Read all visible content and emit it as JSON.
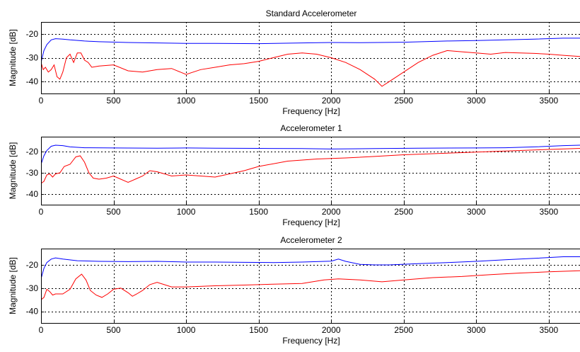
{
  "chart_data": [
    {
      "type": "line",
      "title": "Standard Accelerometer",
      "xlabel": "Frequency [Hz]",
      "ylabel": "Magnitude [dB]",
      "xlim": [
        0,
        3720
      ],
      "ylim": [
        -45,
        -15
      ],
      "xticks": [
        0,
        500,
        1000,
        1500,
        2000,
        2500,
        3000,
        3500
      ],
      "yticks": [
        -20,
        -30,
        -40
      ],
      "xtick_labels": [
        "0",
        "500",
        "1000",
        "1500",
        "2000",
        "2500",
        "3000",
        "3500"
      ],
      "ytick_labels": [
        "-20",
        "-30",
        "-40"
      ],
      "grid": true,
      "series": [
        {
          "color": "#0000ff",
          "x": [
            0,
            20,
            40,
            70,
            100,
            150,
            200,
            300,
            400,
            600,
            800,
            1000,
            1200,
            1500,
            1800,
            2000,
            2200,
            2500,
            2800,
            3000,
            3200,
            3400,
            3600,
            3720
          ],
          "y": [
            -32,
            -27,
            -24.5,
            -22.5,
            -22,
            -22.2,
            -22.5,
            -23,
            -23.3,
            -23.6,
            -23.8,
            -24,
            -24,
            -24.1,
            -23.8,
            -23.6,
            -23.7,
            -23.5,
            -23,
            -22.8,
            -22.5,
            -22.2,
            -21.8,
            -21.8
          ]
        },
        {
          "color": "#ff0000",
          "x": [
            0,
            15,
            30,
            50,
            70,
            90,
            110,
            130,
            150,
            175,
            200,
            225,
            250,
            275,
            300,
            325,
            350,
            400,
            500,
            600,
            700,
            800,
            900,
            1000,
            1100,
            1200,
            1300,
            1400,
            1500,
            1600,
            1700,
            1800,
            1900,
            2000,
            2100,
            2200,
            2300,
            2350,
            2400,
            2500,
            2600,
            2700,
            2800,
            2900,
            3000,
            3100,
            3200,
            3300,
            3400,
            3500,
            3600,
            3720
          ],
          "y": [
            -32,
            -35,
            -34,
            -36,
            -35,
            -33,
            -38,
            -39,
            -36,
            -30,
            -28.5,
            -32,
            -28,
            -28,
            -31,
            -32,
            -34,
            -33.5,
            -33,
            -35.5,
            -36,
            -35,
            -34.5,
            -37,
            -35,
            -34,
            -33,
            -32.5,
            -31.5,
            -30,
            -28.5,
            -28,
            -28.5,
            -30,
            -32,
            -35,
            -39,
            -42,
            -40,
            -36,
            -32,
            -29,
            -27,
            -27.5,
            -28,
            -28.5,
            -27.8,
            -28,
            -28.2,
            -28.5,
            -29,
            -29.5
          ]
        }
      ]
    },
    {
      "type": "line",
      "title": "Accelerometer 1",
      "xlabel": "Frequency [Hz]",
      "ylabel": "Magnitude [dB]",
      "xlim": [
        0,
        3720
      ],
      "ylim": [
        -45,
        -13
      ],
      "xticks": [
        0,
        500,
        1000,
        1500,
        2000,
        2500,
        3000,
        3500
      ],
      "yticks": [
        -20,
        -30,
        -40
      ],
      "xtick_labels": [
        "0",
        "500",
        "1000",
        "1500",
        "2000",
        "2500",
        "3000",
        "3500"
      ],
      "ytick_labels": [
        "-20",
        "-30",
        "-40"
      ],
      "grid": true,
      "series": [
        {
          "color": "#0000ff",
          "x": [
            0,
            20,
            40,
            70,
            100,
            150,
            200,
            300,
            500,
            800,
            1000,
            1200,
            1500,
            1800,
            2000,
            2300,
            2600,
            3000,
            3200,
            3400,
            3600,
            3720
          ],
          "y": [
            -26,
            -22,
            -19.5,
            -17.5,
            -17,
            -17.2,
            -17.8,
            -18.2,
            -18.3,
            -18.4,
            -18.3,
            -18.4,
            -18.5,
            -18.6,
            -18.8,
            -18.6,
            -18.4,
            -18.3,
            -18.2,
            -17.8,
            -17.2,
            -17
          ]
        },
        {
          "color": "#ff0000",
          "x": [
            0,
            20,
            40,
            60,
            80,
            100,
            130,
            160,
            200,
            240,
            270,
            300,
            330,
            360,
            400,
            450,
            500,
            550,
            600,
            650,
            700,
            750,
            800,
            900,
            1000,
            1100,
            1200,
            1300,
            1400,
            1500,
            1700,
            1900,
            2100,
            2300,
            2500,
            2700,
            2900,
            3100,
            3300,
            3500,
            3720
          ],
          "y": [
            -35,
            -34,
            -31,
            -30.5,
            -32,
            -30.5,
            -30,
            -27,
            -26,
            -22.5,
            -22,
            -25,
            -30,
            -32.5,
            -33,
            -32.5,
            -31.5,
            -33,
            -34.5,
            -33,
            -31.5,
            -29,
            -29.5,
            -31.5,
            -31,
            -31.5,
            -32,
            -30.5,
            -29,
            -27,
            -24.5,
            -23.5,
            -23,
            -22.3,
            -21.5,
            -21,
            -20.5,
            -20,
            -19.5,
            -19,
            -18.5
          ]
        }
      ]
    },
    {
      "type": "line",
      "title": "Accelerometer 2",
      "xlabel": "Frequency [Hz]",
      "ylabel": "Magnitude [dB]",
      "xlim": [
        0,
        3720
      ],
      "ylim": [
        -45,
        -13
      ],
      "xticks": [
        0,
        500,
        1000,
        1500,
        2000,
        2500,
        3000,
        3500
      ],
      "yticks": [
        -20,
        -30,
        -40
      ],
      "xtick_labels": [
        "0",
        "500",
        "1000",
        "1500",
        "2000",
        "2500",
        "3000",
        "3500"
      ],
      "ytick_labels": [
        "-20",
        "-30",
        "-40"
      ],
      "grid": true,
      "series": [
        {
          "color": "#0000ff",
          "x": [
            0,
            20,
            40,
            70,
            100,
            150,
            250,
            400,
            600,
            800,
            1000,
            1200,
            1400,
            1600,
            1800,
            2000,
            2050,
            2100,
            2200,
            2300,
            2400,
            2600,
            2800,
            3000,
            3200,
            3400,
            3600,
            3720
          ],
          "y": [
            -26,
            -21.5,
            -19,
            -17.5,
            -17,
            -17.5,
            -18.2,
            -18.5,
            -18.6,
            -18.5,
            -18.8,
            -18.8,
            -18.9,
            -19,
            -18.8,
            -18.4,
            -17.5,
            -18.5,
            -19.8,
            -20,
            -20,
            -19.5,
            -19,
            -18.5,
            -17.8,
            -17.2,
            -16.5,
            -16.5
          ]
        },
        {
          "color": "#ff0000",
          "x": [
            0,
            20,
            40,
            60,
            80,
            100,
            150,
            200,
            240,
            280,
            310,
            340,
            380,
            420,
            460,
            500,
            550,
            600,
            630,
            660,
            700,
            750,
            800,
            850,
            900,
            1000,
            1200,
            1400,
            1600,
            1800,
            1950,
            2050,
            2200,
            2350,
            2500,
            2700,
            2900,
            3100,
            3300,
            3500,
            3720
          ],
          "y": [
            -35,
            -34,
            -30.5,
            -31.5,
            -33,
            -32.5,
            -32.5,
            -30.5,
            -26,
            -24,
            -26.5,
            -31,
            -33,
            -34,
            -32.5,
            -30.5,
            -30,
            -32,
            -33.5,
            -32.5,
            -31,
            -28.5,
            -27.5,
            -28.5,
            -29.5,
            -29.5,
            -29,
            -28.7,
            -28.3,
            -28,
            -26.5,
            -26,
            -26.5,
            -27.3,
            -26.5,
            -25.5,
            -25,
            -24.2,
            -23.5,
            -23,
            -22.5
          ]
        }
      ]
    }
  ]
}
